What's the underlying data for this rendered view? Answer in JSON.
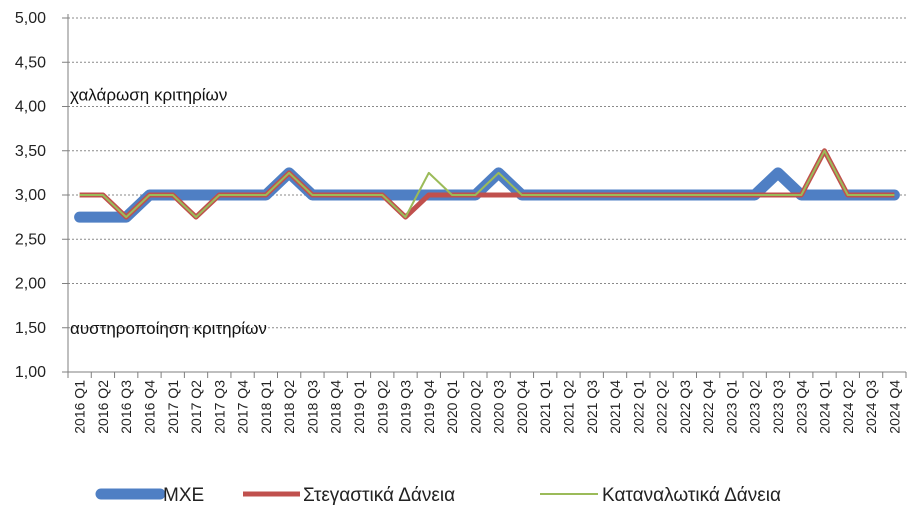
{
  "chart_data": {
    "type": "line",
    "title": "",
    "xlabel": "",
    "ylabel": "",
    "ylim": [
      1.0,
      5.0
    ],
    "yticks": [
      "1,00",
      "1,50",
      "2,00",
      "2,50",
      "3,00",
      "3,50",
      "4,00",
      "4,50",
      "5,00"
    ],
    "grid": "horizontal-dotted",
    "legend": "bottom",
    "annotations": [
      {
        "text": "χαλάρωση κριτηρίων",
        "y": 4.0
      },
      {
        "text": "αυστηροποίηση κριτηρίων",
        "y": 1.5
      }
    ],
    "categories": [
      "2016 Q1",
      "2016 Q2",
      "2016 Q3",
      "2016 Q4",
      "2017 Q1",
      "2017 Q2",
      "2017 Q3",
      "2017 Q4",
      "2018 Q1",
      "2018 Q2",
      "2018 Q3",
      "2018 Q4",
      "2019 Q1",
      "2019 Q2",
      "2019 Q3",
      "2019 Q4",
      "2020 Q1",
      "2020 Q2",
      "2020 Q3",
      "2020 Q4",
      "2021 Q1",
      "2021 Q2",
      "2021 Q3",
      "2021 Q4",
      "2022 Q1",
      "2022 Q2",
      "2022 Q3",
      "2022 Q4",
      "2023 Q1",
      "2023 Q2",
      "2023 Q3",
      "2023 Q4",
      "2024 Q1",
      "2024 Q2",
      "2024 Q3",
      "2024 Q4"
    ],
    "series": [
      {
        "name": "ΜΧΕ",
        "color": "#4f7fc4",
        "width": 11,
        "values": [
          2.75,
          2.75,
          2.75,
          3.0,
          3.0,
          3.0,
          3.0,
          3.0,
          3.0,
          3.25,
          3.0,
          3.0,
          3.0,
          3.0,
          3.0,
          3.0,
          3.0,
          3.0,
          3.25,
          3.0,
          3.0,
          3.0,
          3.0,
          3.0,
          3.0,
          3.0,
          3.0,
          3.0,
          3.0,
          3.0,
          3.25,
          3.0,
          3.0,
          3.0,
          3.0,
          3.0
        ]
      },
      {
        "name": "Στεγαστικά Δάνεια",
        "color": "#c0504d",
        "width": 5,
        "values": [
          3.0,
          3.0,
          2.75,
          3.0,
          3.0,
          2.75,
          3.0,
          3.0,
          3.0,
          3.25,
          3.0,
          3.0,
          3.0,
          3.0,
          2.75,
          3.0,
          3.0,
          3.0,
          3.0,
          3.0,
          3.0,
          3.0,
          3.0,
          3.0,
          3.0,
          3.0,
          3.0,
          3.0,
          3.0,
          3.0,
          3.0,
          3.0,
          3.5,
          3.0,
          3.0,
          3.0
        ]
      },
      {
        "name": "Καταναλωτικά Δάνεια",
        "color": "#9bbb59",
        "width": 2,
        "values": [
          3.0,
          3.0,
          2.75,
          3.0,
          3.0,
          2.75,
          3.0,
          3.0,
          3.0,
          3.25,
          3.0,
          3.0,
          3.0,
          3.0,
          2.75,
          3.25,
          3.0,
          3.0,
          3.25,
          3.0,
          3.0,
          3.0,
          3.0,
          3.0,
          3.0,
          3.0,
          3.0,
          3.0,
          3.0,
          3.0,
          3.0,
          3.0,
          3.5,
          3.0,
          3.0,
          3.0
        ]
      }
    ]
  }
}
